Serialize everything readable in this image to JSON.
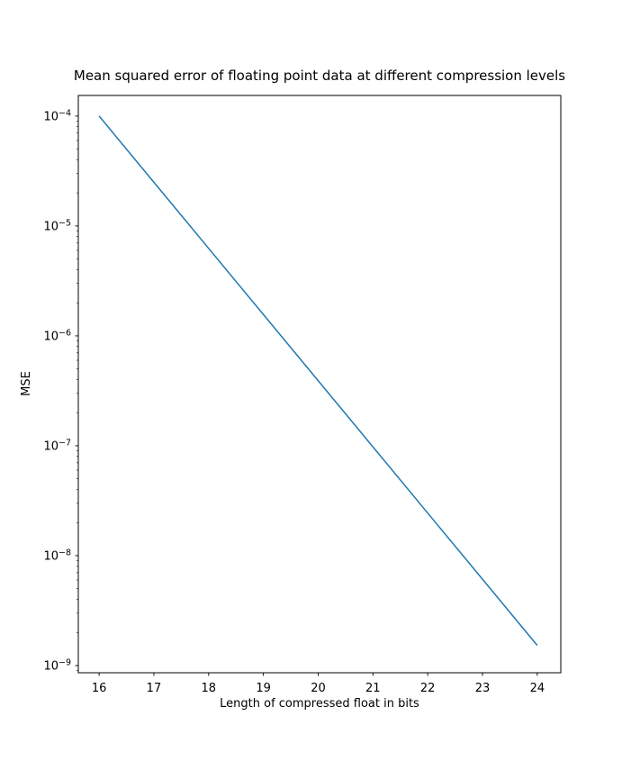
{
  "figure": {
    "background": "#ffffff"
  },
  "chart_data": {
    "type": "line",
    "title": "Mean squared error of floating point data at different compression levels",
    "xlabel": "Length of compressed float in bits",
    "ylabel": "MSE",
    "x": [
      16,
      17,
      18,
      19,
      20,
      21,
      22,
      23,
      24
    ],
    "values": [
      0.0001,
      2.5e-05,
      6.25e-06,
      1.5625e-06,
      3.906e-07,
      9.766e-08,
      2.441e-08,
      6.104e-09,
      1.526e-09
    ],
    "series": [
      {
        "name": "MSE",
        "color": "#1f77b4",
        "values": [
          0.0001,
          2.5e-05,
          6.25e-06,
          1.5625e-06,
          3.906e-07,
          9.766e-08,
          2.441e-08,
          6.104e-09,
          1.526e-09
        ]
      }
    ],
    "x_ticks": [
      16,
      17,
      18,
      19,
      20,
      21,
      22,
      23,
      24
    ],
    "y_tick_exponents": [
      -4,
      -5,
      -6,
      -7,
      -8,
      -9
    ],
    "y_scale": "log",
    "x_scale": "linear",
    "xlim": [
      15.62,
      24.43
    ],
    "ylim": [
      8.6e-10,
      0.000154
    ],
    "grid": false,
    "legend": "none",
    "line_color": "#1f77b4",
    "axis_color": "#000000",
    "text_color": "#000000"
  }
}
